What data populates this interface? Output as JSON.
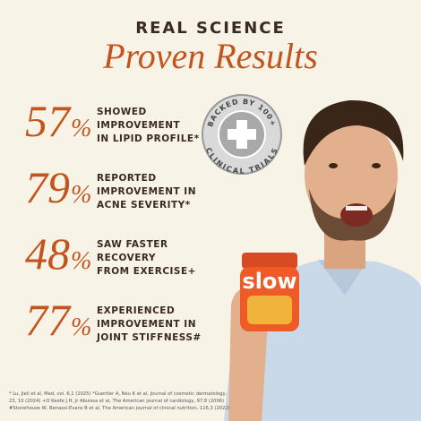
{
  "header": {
    "kicker": "REAL SCIENCE",
    "title": "Proven Results"
  },
  "stats": [
    {
      "figure": "57",
      "unit": "%",
      "lines": [
        "SHOWED",
        "IMPROVEMENT",
        "IN LIPID PROFILE*"
      ]
    },
    {
      "figure": "79",
      "unit": "%",
      "lines": [
        "REPORTED",
        "IMPROVEMENT IN",
        "ACNE SEVERITY*"
      ]
    },
    {
      "figure": "48",
      "unit": "%",
      "lines": [
        "SAW FASTER",
        "RECOVERY",
        "FROM EXERCISE+"
      ]
    },
    {
      "figure": "77",
      "unit": "%",
      "lines": [
        "EXPERIENCED",
        "IMPROVEMENT IN",
        "JOINT STIFFNESS#"
      ]
    }
  ],
  "badge": {
    "top": "BACKED BY 100+",
    "bottom": "CLINICAL TRIALS"
  },
  "product": {
    "brand": "slow"
  },
  "footnotes": [
    "* Lu, Jieli et al, Med, vol. 6,1 (2025) *Guertler A, Neu K et al, Journal of cosmetic dermatology,",
    "23, 10 (2024) +O Keefe J.H, Jr Abuissa et al, The American journal of cardiology, 97,8 (2006)",
    "#Stonehouse W, Benassi-Evans B et al, The American journal of clinical nutrition, 116,3 (2022)"
  ]
}
